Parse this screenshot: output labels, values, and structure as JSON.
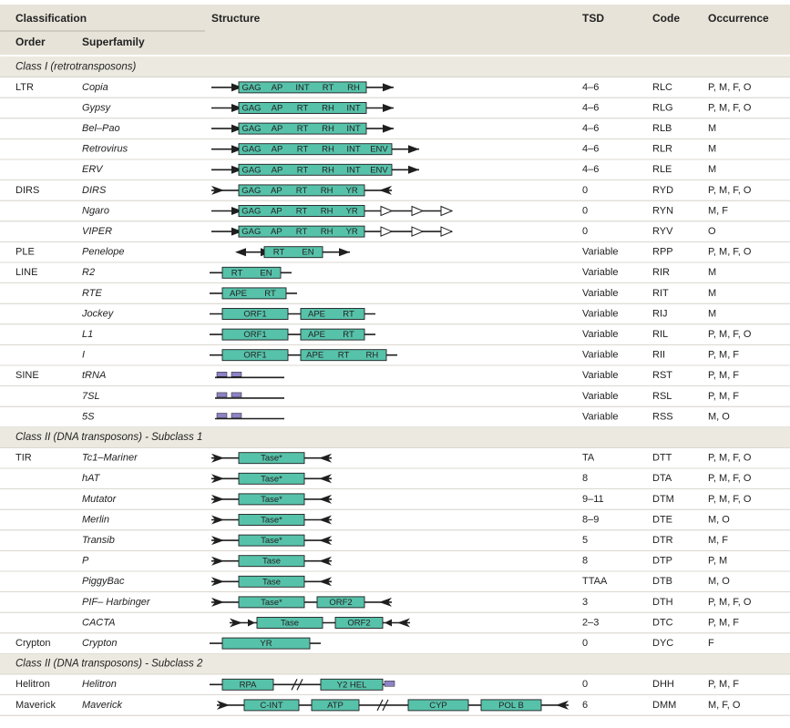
{
  "colors": {
    "header_bg": "#e7e3d8",
    "section_bg": "#ece9e0",
    "row_line": "#cfcbc1",
    "box_fill": "#57c2aa",
    "box_stroke": "#1f1f1f",
    "line": "#1f1f1f",
    "purple": "#8d82c5"
  },
  "header": {
    "classification": "Classification",
    "structure": "Structure",
    "tsd": "TSD",
    "code": "Code",
    "occurrence": "Occurrence",
    "order": "Order",
    "superfamily": "Superfamily"
  },
  "rows": [
    {
      "type": "section",
      "label": "Class I (retrotransposons)"
    },
    {
      "order": "LTR",
      "superfamily": "Copia",
      "tsd": "4–6",
      "code": "RLC",
      "occ": "P, M, F, O",
      "s": {
        "lt": "arrow",
        "rt": "arrow",
        "boxes": [
          {
            "l": [
              "GAG",
              "AP",
              "INT",
              "RT",
              "RH"
            ]
          }
        ]
      }
    },
    {
      "order": "",
      "superfamily": "Gypsy",
      "tsd": "4–6",
      "code": "RLG",
      "occ": "P, M, F, O",
      "s": {
        "lt": "arrow",
        "rt": "arrow",
        "boxes": [
          {
            "l": [
              "GAG",
              "AP",
              "RT",
              "RH",
              "INT"
            ]
          }
        ]
      }
    },
    {
      "order": "",
      "superfamily": "Bel–Pao",
      "tsd": "4–6",
      "code": "RLB",
      "occ": "M",
      "s": {
        "lt": "arrow",
        "rt": "arrow",
        "boxes": [
          {
            "l": [
              "GAG",
              "AP",
              "RT",
              "RH",
              "INT"
            ]
          }
        ]
      }
    },
    {
      "order": "",
      "superfamily": "Retrovirus",
      "tsd": "4–6",
      "code": "RLR",
      "occ": "M",
      "s": {
        "lt": "arrow",
        "rt": "arrow",
        "boxes": [
          {
            "l": [
              "GAG",
              "AP",
              "RT",
              "RH",
              "INT",
              "ENV"
            ]
          }
        ]
      }
    },
    {
      "order": "",
      "superfamily": "ERV",
      "tsd": "4–6",
      "code": "RLE",
      "occ": "M",
      "s": {
        "lt": "arrow",
        "rt": "arrow",
        "boxes": [
          {
            "l": [
              "GAG",
              "AP",
              "RT",
              "RH",
              "INT",
              "ENV"
            ]
          }
        ]
      }
    },
    {
      "order": "DIRS",
      "superfamily": "DIRS",
      "tsd": "0",
      "code": "RYD",
      "occ": "P, M, F, O",
      "s": {
        "lt": "tirL",
        "rt": "tirR",
        "boxes": [
          {
            "l": [
              "GAG",
              "AP",
              "RT",
              "RH",
              "YR"
            ]
          }
        ]
      }
    },
    {
      "order": "",
      "superfamily": "Ngaro",
      "tsd": "0",
      "code": "RYN",
      "occ": "M, F",
      "s": {
        "lt": "arrow",
        "rt": "openArrows",
        "boxes": [
          {
            "l": [
              "GAG",
              "AP",
              "RT",
              "RH",
              "YR"
            ]
          }
        ]
      }
    },
    {
      "order": "",
      "superfamily": "VIPER",
      "tsd": "0",
      "code": "RYV",
      "occ": "O",
      "s": {
        "lt": "arrow",
        "rt": "openArrows",
        "boxes": [
          {
            "l": [
              "GAG",
              "AP",
              "RT",
              "RH",
              "YR"
            ]
          }
        ]
      }
    },
    {
      "order": "PLE",
      "superfamily": "Penelope",
      "tsd": "Variable",
      "code": "RPP",
      "occ": "P, M, F, O",
      "s": {
        "lt": "dblArrow",
        "rt": "arrow",
        "boxes": [
          {
            "l": [
              "RT",
              "EN"
            ]
          }
        ]
      }
    },
    {
      "order": "LINE",
      "superfamily": "R2",
      "tsd": "Variable",
      "code": "RIR",
      "occ": "M",
      "s": {
        "lt": "none",
        "rt": "none",
        "boxes": [
          {
            "l": [
              "RT",
              "EN"
            ]
          }
        ]
      }
    },
    {
      "order": "",
      "superfamily": "RTE",
      "tsd": "Variable",
      "code": "RIT",
      "occ": "M",
      "s": {
        "lt": "none",
        "rt": "none",
        "boxes": [
          {
            "l": [
              "APE",
              "RT"
            ]
          }
        ]
      }
    },
    {
      "order": "",
      "superfamily": "Jockey",
      "tsd": "Variable",
      "code": "RIJ",
      "occ": "M",
      "s": {
        "lt": "none",
        "rt": "none",
        "boxes": [
          {
            "l": [
              "ORF1"
            ]
          },
          {
            "l": [
              "APE",
              "RT"
            ]
          }
        ]
      }
    },
    {
      "order": "",
      "superfamily": "L1",
      "tsd": "Variable",
      "code": "RIL",
      "occ": "P, M, F, O",
      "s": {
        "lt": "none",
        "rt": "none",
        "boxes": [
          {
            "l": [
              "ORF1"
            ]
          },
          {
            "l": [
              "APE",
              "RT"
            ]
          }
        ]
      }
    },
    {
      "order": "",
      "superfamily": "I",
      "tsd": "Variable",
      "code": "RII",
      "occ": "P, M, F",
      "s": {
        "lt": "none",
        "rt": "none",
        "boxes": [
          {
            "l": [
              "ORF1"
            ]
          },
          {
            "l": [
              "APE",
              "RT",
              "RH"
            ]
          }
        ]
      }
    },
    {
      "order": "SINE",
      "superfamily": "tRNA",
      "tsd": "Variable",
      "code": "RST",
      "occ": "P, M, F",
      "s": {
        "sine": true
      }
    },
    {
      "order": "",
      "superfamily": "7SL",
      "tsd": "Variable",
      "code": "RSL",
      "occ": "P, M, F",
      "s": {
        "sine": true
      }
    },
    {
      "order": "",
      "superfamily": "5S",
      "tsd": "Variable",
      "code": "RSS",
      "occ": "M, O",
      "s": {
        "sine": true
      }
    },
    {
      "type": "section",
      "label": "Class II (DNA transposons) - Subclass 1"
    },
    {
      "order": "TIR",
      "superfamily": "Tc1–Mariner",
      "tsd": "TA",
      "code": "DTT",
      "occ": "P, M, F, O",
      "s": {
        "lt": "tirL",
        "rt": "tirR",
        "boxes": [
          {
            "l": [
              "Tase*"
            ]
          }
        ]
      }
    },
    {
      "order": "",
      "superfamily": "hAT",
      "tsd": "8",
      "code": "DTA",
      "occ": "P, M, F, O",
      "s": {
        "lt": "tirL",
        "rt": "tirR",
        "boxes": [
          {
            "l": [
              "Tase*"
            ]
          }
        ]
      }
    },
    {
      "order": "",
      "superfamily": "Mutator",
      "tsd": "9–11",
      "code": "DTM",
      "occ": "P, M, F, O",
      "s": {
        "lt": "tirL",
        "rt": "tirR",
        "boxes": [
          {
            "l": [
              "Tase*"
            ]
          }
        ]
      }
    },
    {
      "order": "",
      "superfamily": "Merlin",
      "tsd": "8–9",
      "code": "DTE",
      "occ": "M, O",
      "s": {
        "lt": "tirL",
        "rt": "tirR",
        "boxes": [
          {
            "l": [
              "Tase*"
            ]
          }
        ]
      }
    },
    {
      "order": "",
      "superfamily": "Transib",
      "tsd": "5",
      "code": "DTR",
      "occ": "M, F",
      "s": {
        "lt": "tirL",
        "rt": "tirR",
        "boxes": [
          {
            "l": [
              "Tase*"
            ]
          }
        ]
      }
    },
    {
      "order": "",
      "superfamily": "P",
      "tsd": "8",
      "code": "DTP",
      "occ": "P, M",
      "s": {
        "lt": "tirL",
        "rt": "tirR",
        "boxes": [
          {
            "l": [
              "Tase"
            ]
          }
        ]
      }
    },
    {
      "order": "",
      "superfamily": "PiggyBac",
      "tsd": "TTAA",
      "code": "DTB",
      "occ": "M, O",
      "s": {
        "lt": "tirL",
        "rt": "tirR",
        "boxes": [
          {
            "l": [
              "Tase"
            ]
          }
        ]
      }
    },
    {
      "order": "",
      "superfamily": "PIF– Harbinger",
      "tsd": "3",
      "code": "DTH",
      "occ": "P, M, F, O",
      "s": {
        "lt": "tirL",
        "rt": "tirR",
        "boxes": [
          {
            "l": [
              "Tase*"
            ]
          },
          {
            "l": [
              "ORF2"
            ]
          }
        ]
      }
    },
    {
      "order": "",
      "superfamily": "CACTA",
      "tsd": "2–3",
      "code": "DTC",
      "occ": "P, M, F",
      "s": {
        "lt": "tirLx",
        "rt": "tirRx",
        "boxes": [
          {
            "l": [
              "Tase"
            ]
          },
          {
            "l": [
              "ORF2"
            ]
          }
        ]
      }
    },
    {
      "order": "Crypton",
      "superfamily": "Crypton",
      "tsd": "0",
      "code": "DYC",
      "occ": "F",
      "s": {
        "lt": "none",
        "rt": "none",
        "boxes": [
          {
            "l": [
              "YR"
            ]
          }
        ]
      }
    },
    {
      "type": "section",
      "label": "Class II (DNA transposons) - Subclass 2"
    },
    {
      "order": "Helitron",
      "superfamily": "Helitron",
      "tsd": "0",
      "code": "DHH",
      "occ": "P, M, F",
      "s": {
        "lt": "none",
        "rt": "none",
        "helitron": true,
        "boxes": [
          {
            "l": [
              "RPA"
            ]
          },
          {
            "l": [
              "Y2 HEL"
            ]
          }
        ]
      }
    },
    {
      "order": "Maverick",
      "superfamily": "Maverick",
      "tsd": "6",
      "code": "DMM",
      "occ": "M, F, O",
      "s": {
        "lt": "tirL",
        "rt": "tirR",
        "maverick": true,
        "boxes": [
          {
            "l": [
              "C-INT"
            ]
          },
          {
            "l": [
              "ATP"
            ]
          },
          {
            "l": [
              "CYP"
            ]
          },
          {
            "l": [
              "POL B"
            ]
          }
        ]
      }
    }
  ]
}
